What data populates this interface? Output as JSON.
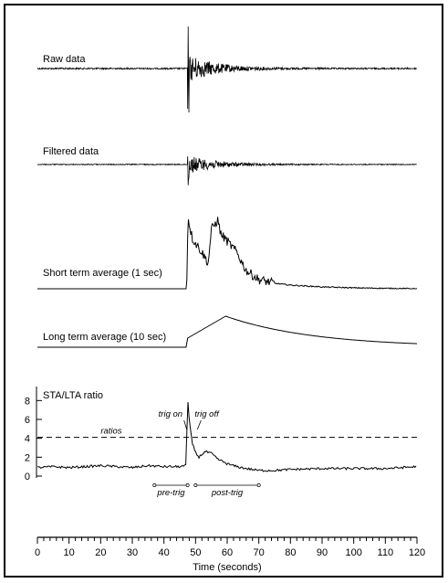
{
  "chart_data": {
    "type": "line",
    "xlabel": "Time (seconds)",
    "xlim": [
      0,
      120
    ],
    "x_ticks": [
      0,
      10,
      20,
      30,
      40,
      50,
      60,
      70,
      80,
      90,
      100,
      110,
      120
    ],
    "event_onset_s": 47.5,
    "panels": [
      {
        "id": "raw",
        "label": "Raw data",
        "kind": "waveform"
      },
      {
        "id": "filtered",
        "label": "Filtered data",
        "kind": "waveform"
      },
      {
        "id": "sta",
        "label": "Short term average (1 sec)",
        "kind": "envelope"
      },
      {
        "id": "lta",
        "label": "Long term average (10 sec)",
        "kind": "envelope"
      },
      {
        "id": "ratio",
        "label": "STA/LTA ratio",
        "kind": "ratio",
        "ylim": [
          0,
          9
        ],
        "y_ticks": [
          0,
          2,
          4,
          6,
          8
        ],
        "threshold": {
          "value": 4.1,
          "label": "ratios",
          "style": "dashed"
        },
        "annotations": [
          {
            "text": "trig on",
            "x": 47.5
          },
          {
            "text": "trig off",
            "x": 50
          }
        ],
        "spans": [
          {
            "text": "pre-trig",
            "from": 37,
            "to": 47.5
          },
          {
            "text": "post-trig",
            "from": 50,
            "to": 70
          }
        ],
        "series": [
          {
            "x": [
              0,
              5,
              10,
              15,
              20,
              25,
              30,
              35,
              40,
              45,
              47,
              47.5,
              48,
              49,
              50,
              51,
              52,
              53,
              55,
              57,
              60,
              63,
              66,
              70,
              75,
              80,
              90,
              100,
              110,
              120
            ],
            "y": [
              0.9,
              1.0,
              0.9,
              1.0,
              1.1,
              1.0,
              0.9,
              1.1,
              1.0,
              1.0,
              1.1,
              8.3,
              6.0,
              3.4,
              2.5,
              2.0,
              2.3,
              2.6,
              2.4,
              1.8,
              1.3,
              1.0,
              0.8,
              0.6,
              0.6,
              0.7,
              0.8,
              0.8,
              0.8,
              1.0
            ]
          }
        ]
      }
    ]
  }
}
